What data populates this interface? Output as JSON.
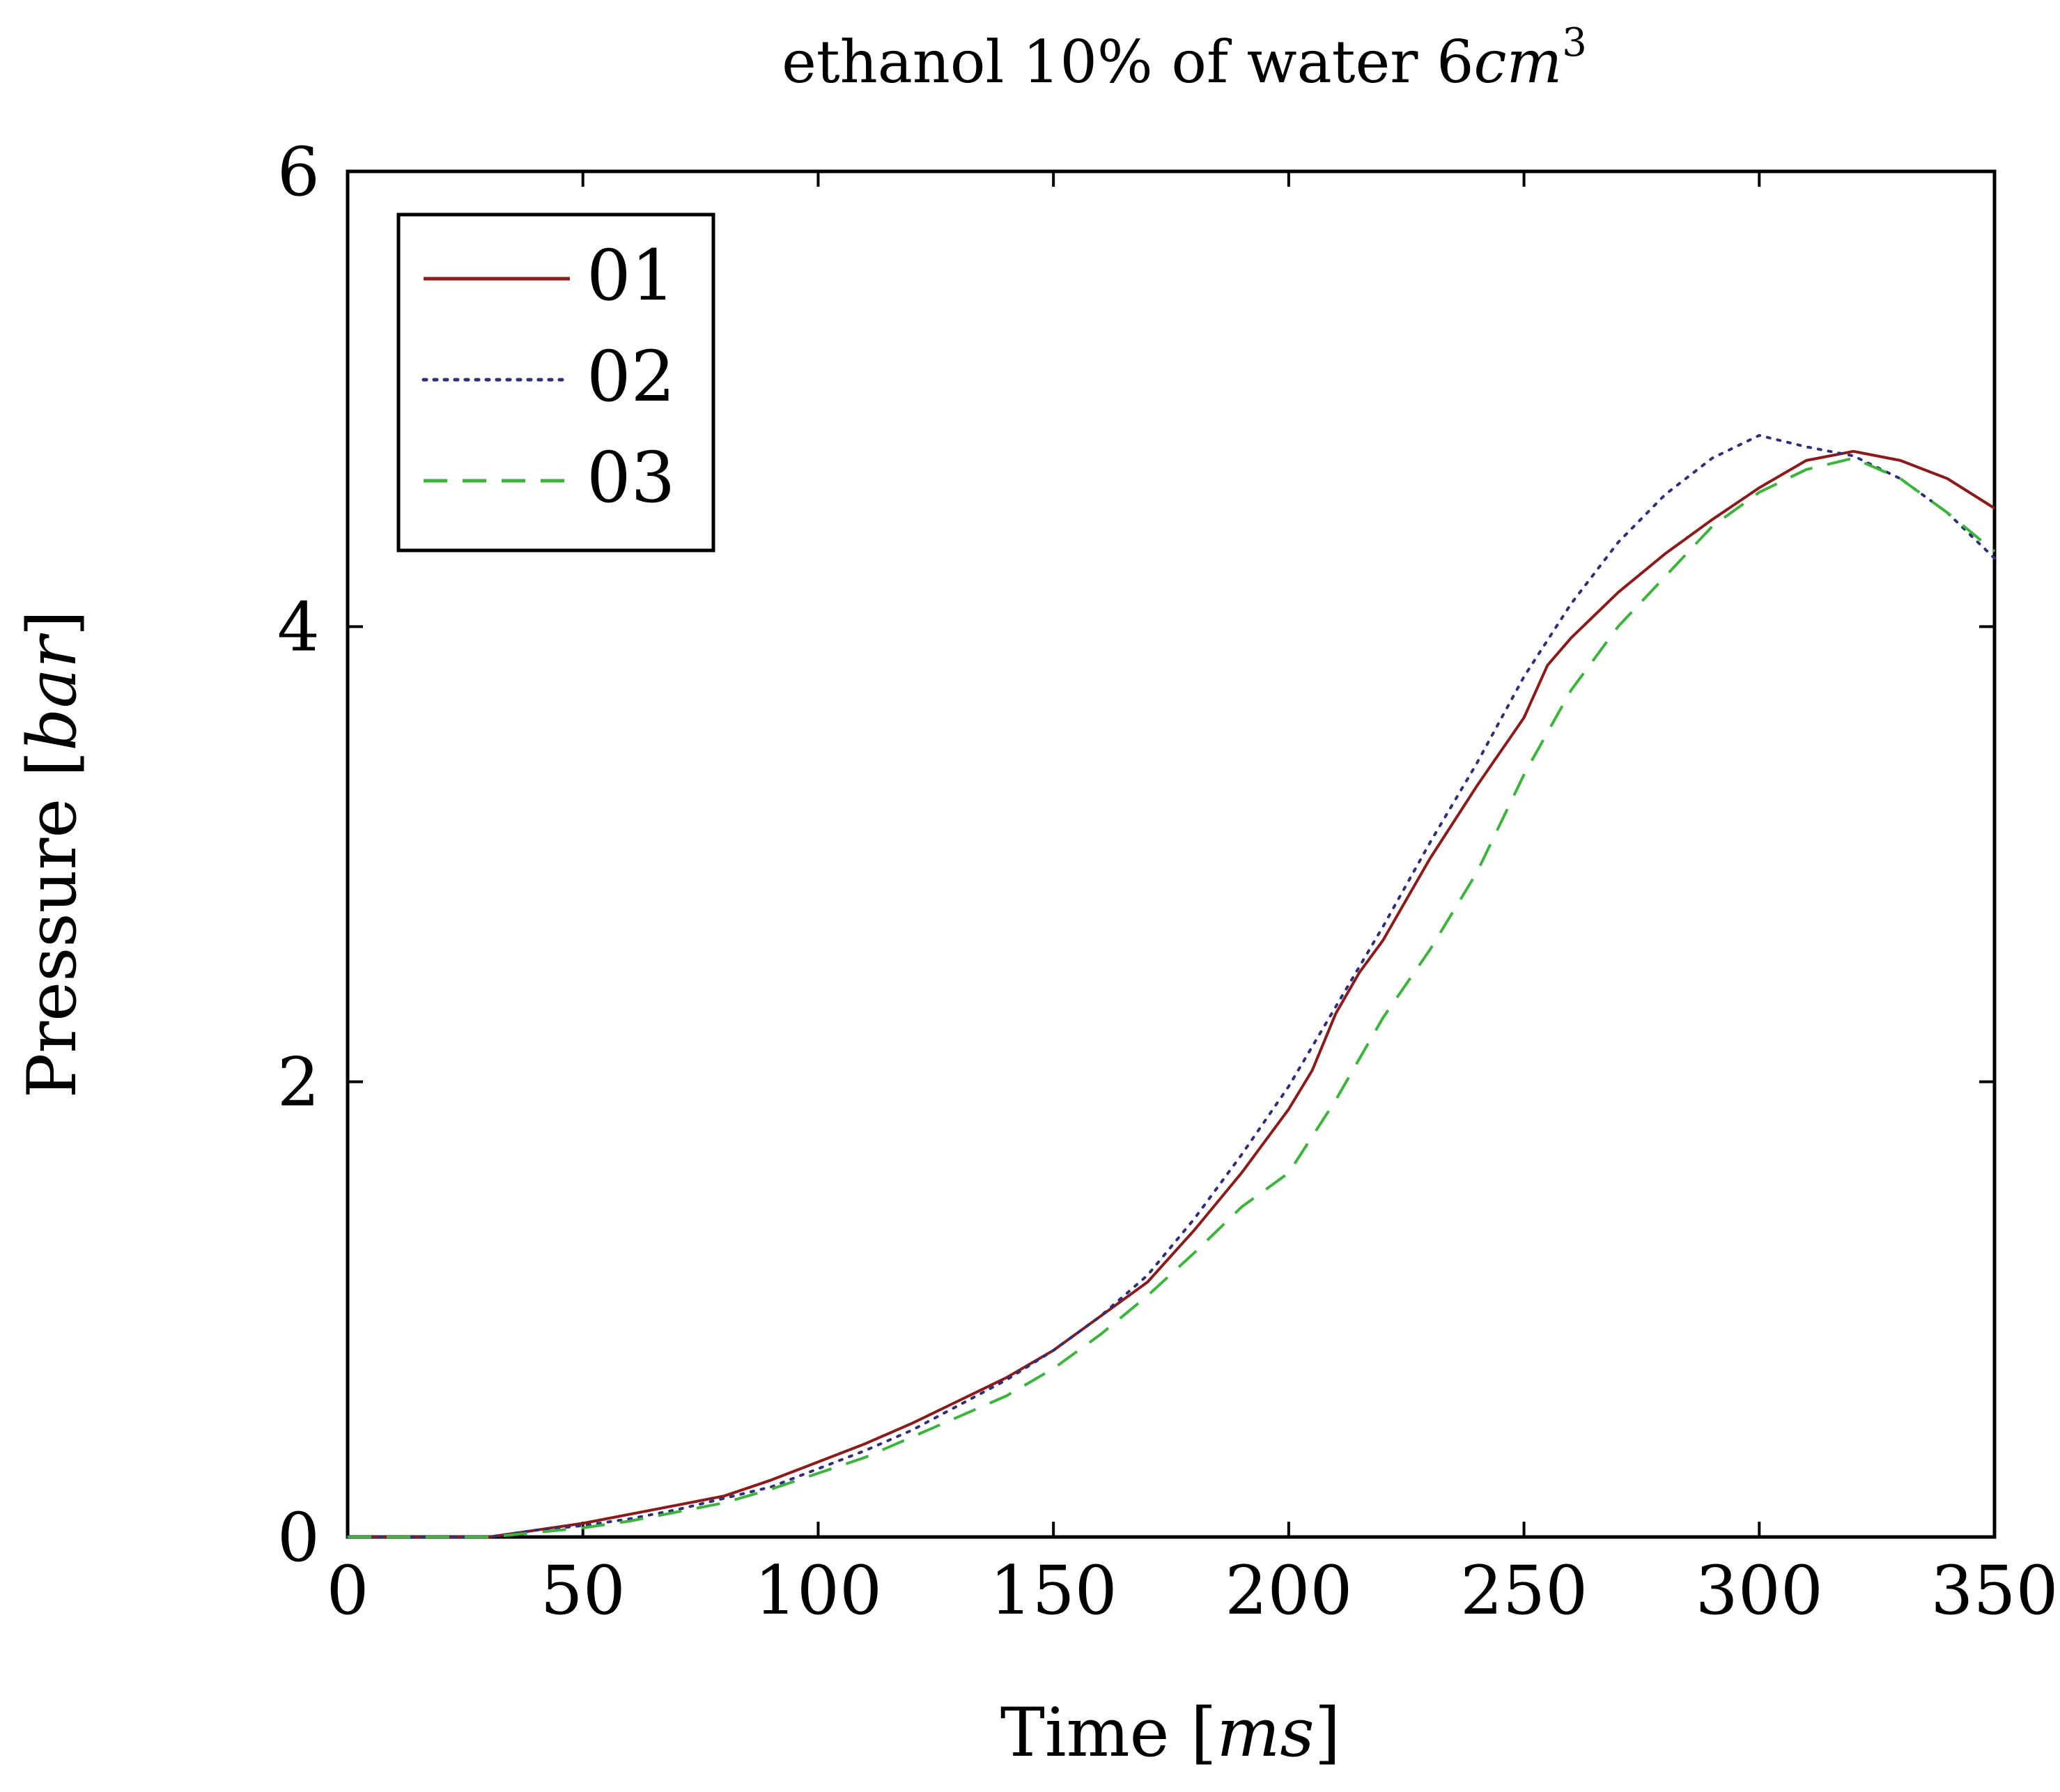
{
  "chart_data": {
    "type": "line",
    "title": {
      "prefix": "ethanol 10% of water 6",
      "unit_italic": "cm",
      "superscript": "3"
    },
    "xlabel": {
      "text": "Time [",
      "unit": "ms",
      "close": "]"
    },
    "ylabel": {
      "text": "Pressure [",
      "unit": "bar",
      "close": "]"
    },
    "xlim": [
      0,
      350
    ],
    "ylim": [
      0,
      6
    ],
    "xticks": [
      0,
      50,
      100,
      150,
      200,
      250,
      300,
      350
    ],
    "yticks": [
      0,
      2,
      4,
      6
    ],
    "grid": false,
    "legend_position": "top-left",
    "colors": {
      "01": "#8b1a1a",
      "02": "#2e2e7a",
      "03": "#3cb43c"
    },
    "series": [
      {
        "name": "01",
        "style": "solid",
        "x": [
          0,
          10,
          20,
          30,
          40,
          50,
          60,
          70,
          80,
          90,
          100,
          110,
          120,
          130,
          140,
          150,
          160,
          170,
          180,
          190,
          200,
          205,
          210,
          215,
          220,
          225,
          230,
          240,
          250,
          255,
          260,
          270,
          280,
          290,
          300,
          310,
          320,
          330,
          340,
          350
        ],
        "y": [
          0.0,
          0.0,
          0.0,
          0.0,
          0.03,
          0.06,
          0.1,
          0.14,
          0.18,
          0.25,
          0.33,
          0.41,
          0.5,
          0.6,
          0.7,
          0.82,
          0.97,
          1.12,
          1.35,
          1.6,
          1.88,
          2.05,
          2.3,
          2.48,
          2.62,
          2.8,
          2.98,
          3.3,
          3.6,
          3.83,
          3.95,
          4.15,
          4.32,
          4.47,
          4.61,
          4.73,
          4.77,
          4.73,
          4.65,
          4.52
        ]
      },
      {
        "name": "02",
        "style": "dotted",
        "x": [
          0,
          10,
          20,
          30,
          40,
          50,
          60,
          70,
          80,
          90,
          100,
          110,
          120,
          130,
          140,
          150,
          160,
          170,
          180,
          190,
          200,
          210,
          220,
          230,
          240,
          250,
          260,
          270,
          280,
          290,
          300,
          310,
          320,
          330,
          340,
          350
        ],
        "y": [
          0.0,
          0.0,
          0.0,
          0.0,
          0.03,
          0.05,
          0.08,
          0.12,
          0.17,
          0.22,
          0.3,
          0.38,
          0.47,
          0.58,
          0.69,
          0.82,
          0.97,
          1.15,
          1.4,
          1.68,
          1.98,
          2.33,
          2.68,
          3.05,
          3.4,
          3.78,
          4.1,
          4.37,
          4.58,
          4.74,
          4.84,
          4.79,
          4.75,
          4.65,
          4.5,
          4.3
        ]
      },
      {
        "name": "03",
        "style": "dashed",
        "x": [
          0,
          10,
          20,
          30,
          40,
          50,
          60,
          70,
          80,
          90,
          100,
          110,
          120,
          130,
          140,
          150,
          160,
          170,
          180,
          190,
          200,
          210,
          220,
          230,
          240,
          250,
          260,
          270,
          280,
          290,
          300,
          310,
          320,
          330,
          340,
          350
        ],
        "y": [
          0.0,
          0.0,
          0.0,
          0.0,
          0.02,
          0.04,
          0.07,
          0.11,
          0.15,
          0.21,
          0.28,
          0.35,
          0.44,
          0.53,
          0.62,
          0.74,
          0.89,
          1.06,
          1.25,
          1.45,
          1.6,
          1.92,
          2.28,
          2.58,
          2.92,
          3.35,
          3.72,
          4.0,
          4.22,
          4.44,
          4.59,
          4.69,
          4.74,
          4.65,
          4.5,
          4.33
        ]
      }
    ]
  }
}
